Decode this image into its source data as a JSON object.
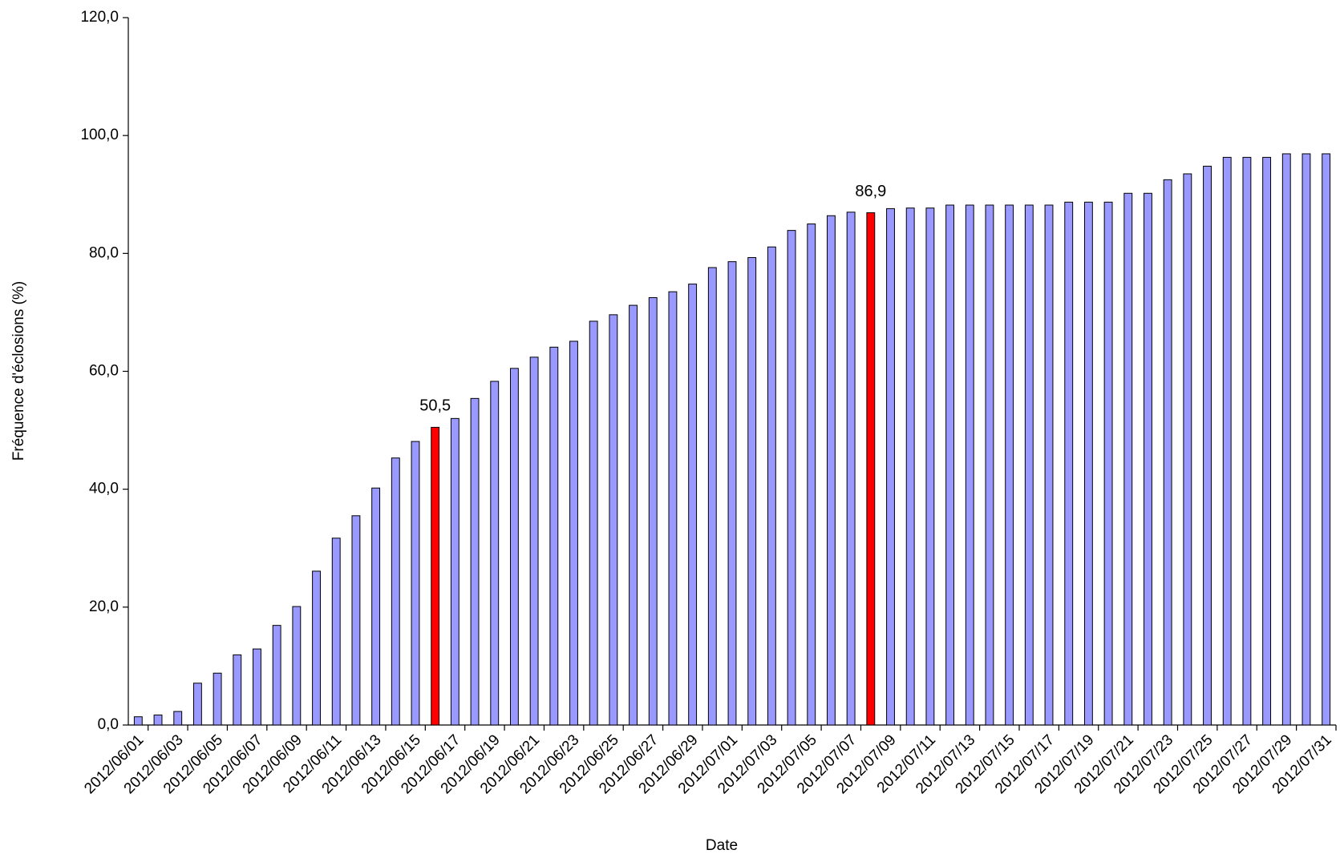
{
  "chart_data": {
    "type": "bar",
    "x_label": "Date",
    "y_label": "Fréquence d'éclosions (%)",
    "categories": [
      "2012/06/01",
      null,
      "2012/06/03",
      null,
      "2012/06/05",
      null,
      "2012/06/07",
      null,
      "2012/06/09",
      null,
      "2012/06/11",
      null,
      "2012/06/13",
      null,
      "2012/06/15",
      null,
      "2012/06/17",
      null,
      "2012/06/19",
      null,
      "2012/06/21",
      null,
      "2012/06/23",
      null,
      "2012/06/25",
      null,
      "2012/06/27",
      null,
      "2012/06/29",
      null,
      "2012/07/01",
      null,
      "2012/07/03",
      null,
      "2012/07/05",
      null,
      "2012/07/07",
      null,
      "2012/07/09",
      null,
      "2012/07/11",
      null,
      "2012/07/13",
      null,
      "2012/07/15",
      null,
      "2012/07/17",
      null,
      "2012/07/19",
      null,
      "2012/07/21",
      null,
      "2012/07/23",
      null,
      "2012/07/25",
      null,
      "2012/07/27",
      null,
      "2012/07/29",
      null,
      "2012/07/31"
    ],
    "values": [
      1.4,
      1.7,
      2.3,
      7.1,
      8.8,
      11.9,
      12.9,
      16.9,
      20.1,
      26.1,
      31.7,
      35.5,
      40.2,
      45.3,
      48.1,
      50.5,
      52.0,
      55.4,
      58.3,
      60.5,
      62.4,
      64.1,
      65.1,
      68.5,
      69.6,
      71.2,
      72.5,
      73.5,
      74.8,
      77.6,
      78.6,
      79.3,
      81.1,
      83.9,
      85.0,
      86.4,
      87.0,
      86.9,
      87.6,
      87.7,
      87.7,
      88.2,
      88.2,
      88.2,
      88.2,
      88.2,
      88.2,
      88.7,
      88.7,
      88.7,
      90.2,
      90.2,
      92.5,
      93.5,
      94.8,
      96.3,
      96.3,
      96.3,
      96.9,
      96.9,
      96.9
    ],
    "value_labels": [
      null,
      null,
      null,
      null,
      null,
      null,
      null,
      null,
      null,
      null,
      null,
      null,
      null,
      null,
      null,
      "50,5",
      null,
      null,
      null,
      null,
      null,
      null,
      null,
      null,
      null,
      null,
      null,
      null,
      null,
      null,
      null,
      null,
      null,
      null,
      null,
      null,
      null,
      "86,9",
      null,
      null,
      null,
      null,
      null,
      null,
      null,
      null,
      null,
      null,
      null,
      null,
      null,
      null,
      null,
      null,
      null,
      null,
      null,
      null,
      null,
      null,
      null
    ],
    "colors": [
      "#9999ff",
      "#9999ff",
      "#9999ff",
      "#9999ff",
      "#9999ff",
      "#9999ff",
      "#9999ff",
      "#9999ff",
      "#9999ff",
      "#9999ff",
      "#9999ff",
      "#9999ff",
      "#9999ff",
      "#9999ff",
      "#9999ff",
      "#ff0000",
      "#9999ff",
      "#9999ff",
      "#9999ff",
      "#9999ff",
      "#9999ff",
      "#9999ff",
      "#9999ff",
      "#9999ff",
      "#9999ff",
      "#9999ff",
      "#9999ff",
      "#9999ff",
      "#9999ff",
      "#9999ff",
      "#9999ff",
      "#9999ff",
      "#9999ff",
      "#9999ff",
      "#9999ff",
      "#9999ff",
      "#9999ff",
      "#ff0000",
      "#9999ff",
      "#9999ff",
      "#9999ff",
      "#9999ff",
      "#9999ff",
      "#9999ff",
      "#9999ff",
      "#9999ff",
      "#9999ff",
      "#9999ff",
      "#9999ff",
      "#9999ff",
      "#9999ff",
      "#9999ff",
      "#9999ff",
      "#9999ff",
      "#9999ff",
      "#9999ff",
      "#9999ff",
      "#9999ff",
      "#9999ff",
      "#9999ff",
      "#9999ff"
    ],
    "ylim": [
      0,
      120
    ],
    "yticks": [
      {
        "value": 0,
        "label": "0,0"
      },
      {
        "value": 20,
        "label": "20,0"
      },
      {
        "value": 40,
        "label": "40,0"
      },
      {
        "value": 60,
        "label": "60,0"
      },
      {
        "value": 80,
        "label": "80,0"
      },
      {
        "value": 100,
        "label": "100,0"
      },
      {
        "value": 120,
        "label": "120,0"
      }
    ],
    "grid": false
  }
}
